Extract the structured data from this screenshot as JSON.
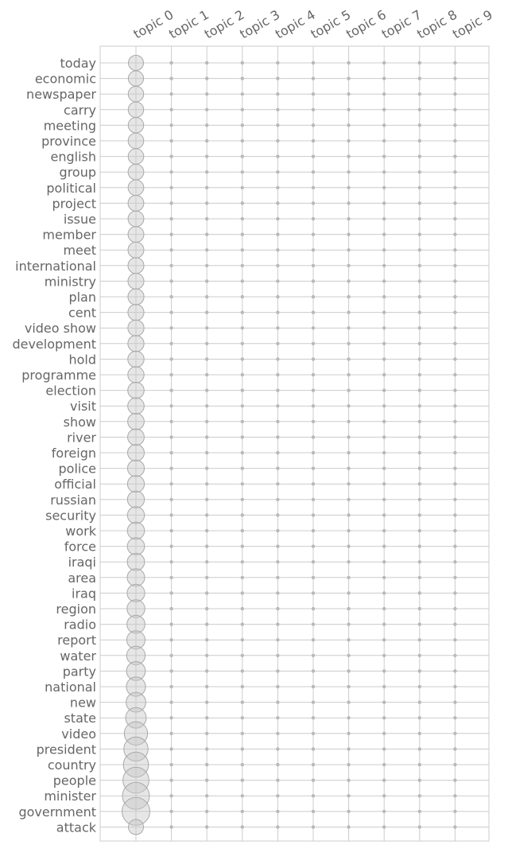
{
  "chart_data": {
    "type": "scatter",
    "title": "",
    "xlabel": "",
    "ylabel": "",
    "grid": true,
    "topics": [
      "topic 0",
      "topic 1",
      "topic 2",
      "topic 3",
      "topic 4",
      "topic 5",
      "topic 6",
      "topic 7",
      "topic 8",
      "topic 9"
    ],
    "terms": [
      "today",
      "economic",
      "newspaper",
      "carry",
      "meeting",
      "province",
      "english",
      "group",
      "political",
      "project",
      "issue",
      "member",
      "meet",
      "international",
      "ministry",
      "plan",
      "cent",
      "video show",
      "development",
      "hold",
      "programme",
      "election",
      "visit",
      "show",
      "river",
      "foreign",
      "police",
      "official",
      "russian",
      "security",
      "work",
      "force",
      "iraqi",
      "area",
      "iraq",
      "region",
      "radio",
      "report",
      "water",
      "party",
      "national",
      "new",
      "state",
      "video",
      "president",
      "country",
      "people",
      "minister",
      "government",
      "attack"
    ],
    "topic0_weights": [
      0.1,
      0.102,
      0.104,
      0.104,
      0.104,
      0.105,
      0.105,
      0.106,
      0.106,
      0.107,
      0.107,
      0.108,
      0.108,
      0.109,
      0.109,
      0.11,
      0.11,
      0.111,
      0.111,
      0.112,
      0.112,
      0.113,
      0.114,
      0.115,
      0.116,
      0.117,
      0.118,
      0.119,
      0.12,
      0.121,
      0.122,
      0.123,
      0.124,
      0.126,
      0.128,
      0.13,
      0.132,
      0.135,
      0.138,
      0.141,
      0.145,
      0.15,
      0.16,
      0.19,
      0.2,
      0.21,
      0.22,
      0.23,
      0.24,
      0.1
    ],
    "other_topics_weight": 0.001
  }
}
